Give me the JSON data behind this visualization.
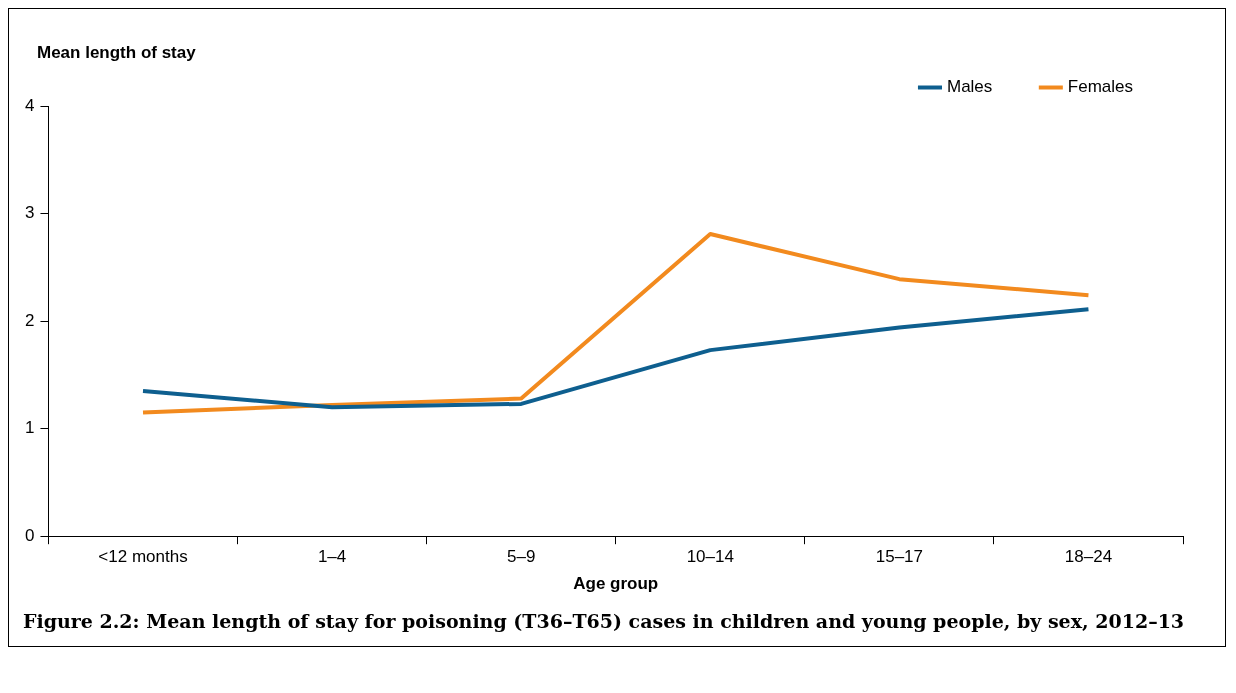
{
  "chart_data": {
    "type": "line",
    "title": "Figure 2.2: Mean length of stay for poisoning (T36–T65) cases in children and young people, by sex, 2012–13",
    "xlabel": "Age group",
    "ylabel": "Mean length of stay",
    "categories": [
      "<12 months",
      "1–4",
      "5–9",
      "10–14",
      "15–17",
      "18–24"
    ],
    "series": [
      {
        "name": "Males",
        "color": "#0e5f8f",
        "values": [
          1.35,
          1.2,
          1.23,
          1.73,
          1.94,
          2.11
        ]
      },
      {
        "name": "Females",
        "color": "#f28a1e",
        "values": [
          1.15,
          1.22,
          1.28,
          2.81,
          2.39,
          2.24
        ]
      }
    ],
    "ylim": [
      0,
      4
    ],
    "yticks": [
      0,
      1,
      2,
      3,
      4
    ],
    "grid": false,
    "legend": "top right",
    "marker": "none",
    "line_style": "solid"
  }
}
